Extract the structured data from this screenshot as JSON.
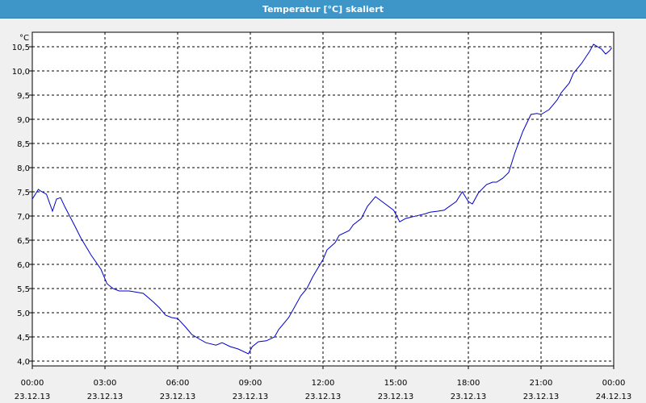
{
  "window": {
    "title": "Temperatur [°C] skaliert"
  },
  "colors": {
    "titlebar": "#3d95c8",
    "line": "#0000cc",
    "grid": "#000000",
    "plot_bg": "#ffffff"
  },
  "chart_data": {
    "type": "line",
    "title": "Temperatur [°C] skaliert",
    "ylabel": "°C",
    "xlabel": "",
    "ylim": [
      3.9,
      10.8
    ],
    "xlim": [
      "23.12.13 00:00",
      "24.12.13 00:00"
    ],
    "grid": true,
    "legend": "none",
    "y_ticks": [
      "4,0",
      "4,5",
      "5,0",
      "5,5",
      "6,0",
      "6,5",
      "7,0",
      "7,5",
      "8,0",
      "8,5",
      "9,0",
      "9,5",
      "10,0",
      "10,5"
    ],
    "x_ticks": [
      {
        "time": "00:00",
        "date": "23.12.13"
      },
      {
        "time": "03:00",
        "date": "23.12.13"
      },
      {
        "time": "06:00",
        "date": "23.12.13"
      },
      {
        "time": "09:00",
        "date": "23.12.13"
      },
      {
        "time": "12:00",
        "date": "23.12.13"
      },
      {
        "time": "15:00",
        "date": "23.12.13"
      },
      {
        "time": "18:00",
        "date": "23.12.13"
      },
      {
        "time": "21:00",
        "date": "23.12.13"
      },
      {
        "time": "00:00",
        "date": "24.12.13"
      }
    ],
    "series": [
      {
        "x": [
          "00:00",
          "00:15",
          "00:20",
          "00:35",
          "00:50",
          "01:00",
          "01:10",
          "01:20",
          "01:45",
          "02:00",
          "02:25",
          "02:50",
          "03:05",
          "03:20",
          "03:35",
          "04:00",
          "04:15",
          "04:35",
          "05:00",
          "05:15",
          "05:30",
          "05:45",
          "06:00",
          "06:20",
          "06:35",
          "06:55",
          "07:10",
          "07:35",
          "07:50",
          "08:10",
          "08:30",
          "08:55",
          "09:05",
          "09:20",
          "09:40",
          "10:00",
          "10:10",
          "10:35",
          "11:05",
          "11:20",
          "11:35",
          "12:00",
          "12:10",
          "12:30",
          "12:40",
          "13:05",
          "13:15",
          "13:35",
          "13:50",
          "14:10",
          "14:55",
          "15:10",
          "15:25",
          "15:40",
          "16:00",
          "16:15",
          "16:25",
          "16:45",
          "17:00",
          "17:10",
          "17:30",
          "17:45",
          "18:00",
          "18:10",
          "18:25",
          "18:45",
          "19:00",
          "19:10",
          "19:25",
          "19:40",
          "19:55",
          "20:15",
          "20:35",
          "20:50",
          "21:00",
          "21:10",
          "21:20",
          "21:40",
          "21:50",
          "22:10",
          "22:20",
          "22:40",
          "23:00",
          "23:10",
          "23:30",
          "23:40",
          "23:50",
          "23:55"
        ],
        "values": [
          7.35,
          7.55,
          7.52,
          7.45,
          7.1,
          7.35,
          7.38,
          7.2,
          6.8,
          6.55,
          6.2,
          5.9,
          5.6,
          5.5,
          5.45,
          5.45,
          5.43,
          5.4,
          5.22,
          5.1,
          4.95,
          4.9,
          4.88,
          4.7,
          4.55,
          4.45,
          4.38,
          4.33,
          4.38,
          4.3,
          4.25,
          4.15,
          4.3,
          4.4,
          4.42,
          4.5,
          4.65,
          4.9,
          5.35,
          5.5,
          5.75,
          6.1,
          6.3,
          6.45,
          6.6,
          6.7,
          6.82,
          6.95,
          7.2,
          7.4,
          7.12,
          6.88,
          6.95,
          6.98,
          7.02,
          7.05,
          7.08,
          7.1,
          7.12,
          7.18,
          7.3,
          7.5,
          7.3,
          7.25,
          7.48,
          7.65,
          7.7,
          7.7,
          7.78,
          7.9,
          8.3,
          8.75,
          9.1,
          9.12,
          9.1,
          9.15,
          9.2,
          9.4,
          9.55,
          9.75,
          9.95,
          10.15,
          10.4,
          10.55,
          10.45,
          10.35,
          10.42,
          10.48
        ]
      }
    ]
  }
}
